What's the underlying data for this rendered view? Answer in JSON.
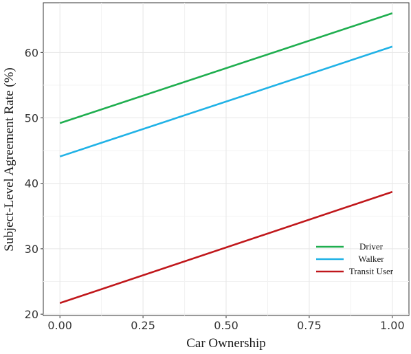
{
  "chart_data": {
    "type": "line",
    "title": "",
    "xlabel": "Car Ownership",
    "ylabel": "Subject-Level Agreement Rate (%)",
    "xlim": [
      -0.05,
      1.05
    ],
    "ylim": [
      19.8,
      67.6
    ],
    "xticks": [
      0.0,
      0.25,
      0.5,
      0.75,
      1.0
    ],
    "xtick_labels": [
      "0.00",
      "0.25",
      "0.50",
      "0.75",
      "1.00"
    ],
    "yticks": [
      20,
      30,
      40,
      50,
      60
    ],
    "ytick_labels": [
      "20",
      "30",
      "40",
      "50",
      "60"
    ],
    "grid": true,
    "legend_position": "bottom-right",
    "series": [
      {
        "name": "Driver",
        "color": "#1fae4f",
        "x": [
          0,
          1
        ],
        "y": [
          49.2,
          66.0
        ]
      },
      {
        "name": "Walker",
        "color": "#20b2e6",
        "x": [
          0,
          1
        ],
        "y": [
          44.1,
          60.9
        ]
      },
      {
        "name": "Transit User",
        "color": "#c0171b",
        "x": [
          0,
          1
        ],
        "y": [
          21.7,
          38.7
        ]
      }
    ]
  }
}
